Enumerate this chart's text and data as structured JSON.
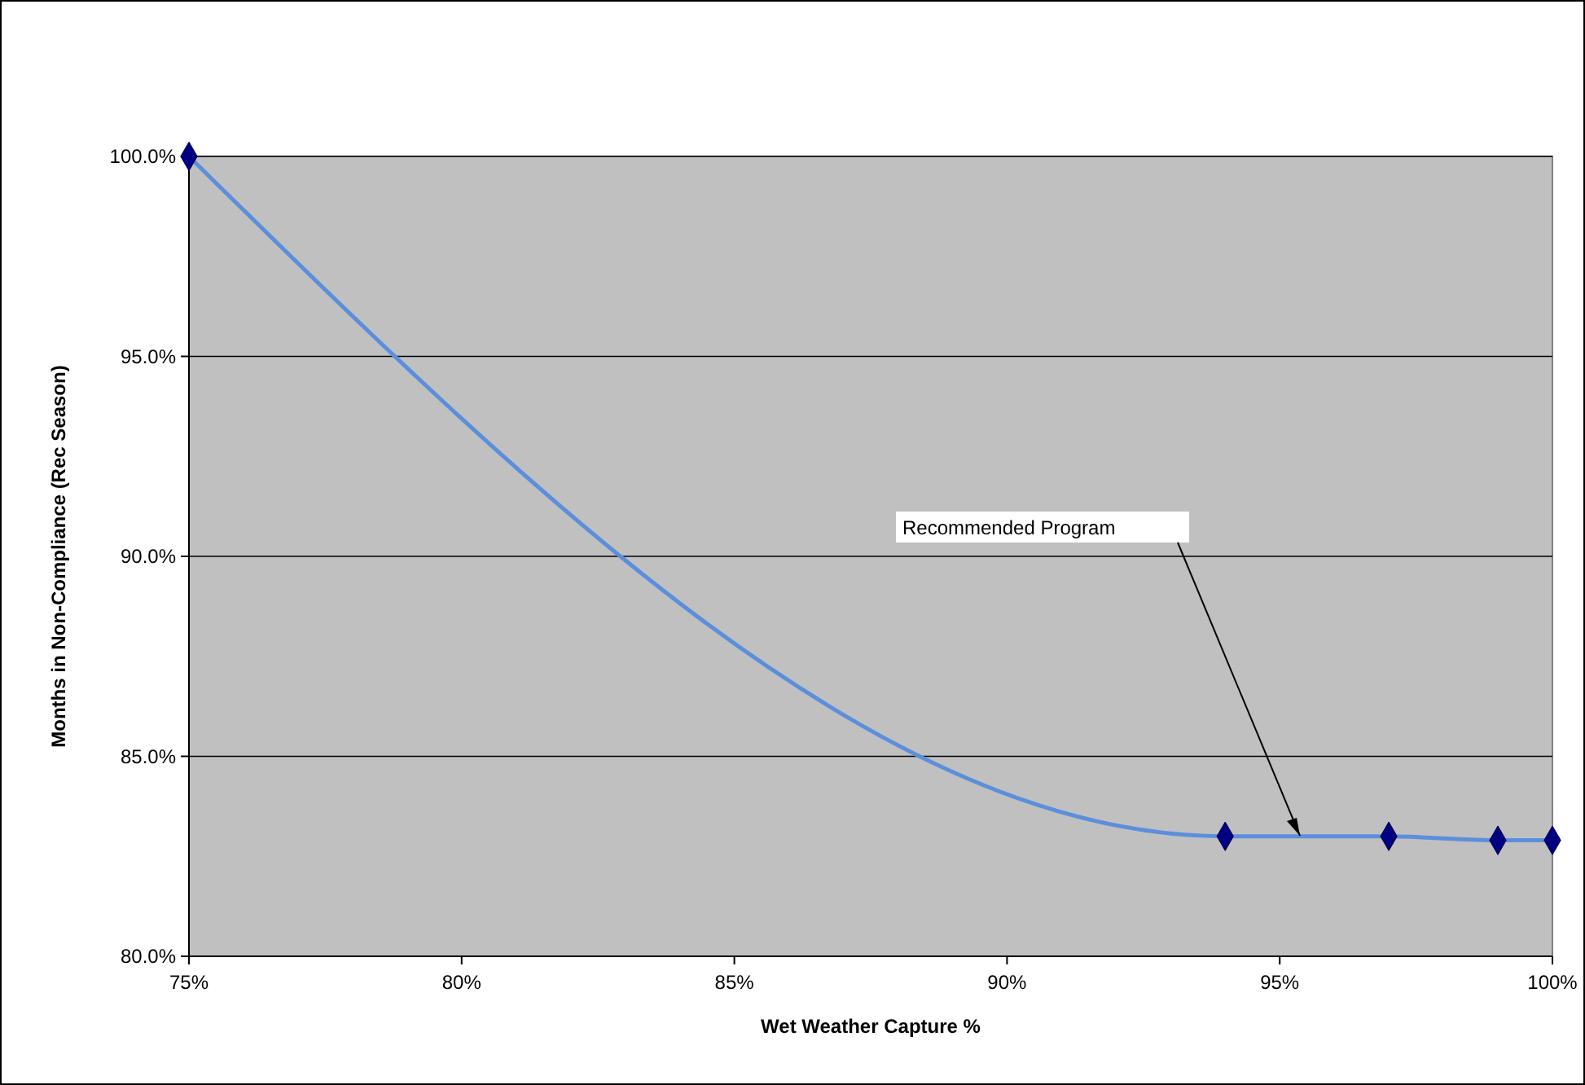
{
  "chart_data": {
    "type": "line",
    "xlabel": "Wet Weather Capture  %",
    "ylabel": "Months in Non-Compliance  (Rec Season)",
    "x": [
      75,
      94,
      97,
      99,
      100
    ],
    "series": [
      {
        "color": "#5b8fdc",
        "values": [
          100,
          83.0,
          83.0,
          82.9,
          82.9
        ]
      }
    ],
    "marker": "diamond",
    "xlim": [
      75,
      100
    ],
    "xticks": [
      {
        "value": 75,
        "label": "75%"
      },
      {
        "value": 80,
        "label": "80%"
      },
      {
        "value": 85,
        "label": "85%"
      },
      {
        "value": 90,
        "label": "90%"
      },
      {
        "value": 95,
        "label": "95%"
      },
      {
        "value": 100,
        "label": "100%"
      }
    ],
    "ylim": [
      80,
      100
    ],
    "yticks": [
      {
        "value": 80,
        "label": "80.0%"
      },
      {
        "value": 85,
        "label": "85.0%"
      },
      {
        "value": 90,
        "label": "90.0%"
      },
      {
        "value": 95,
        "label": "95.0%"
      },
      {
        "value": 100,
        "label": "100.0%"
      }
    ],
    "grid": "y",
    "annotations": [
      "Recommended Program"
    ]
  }
}
